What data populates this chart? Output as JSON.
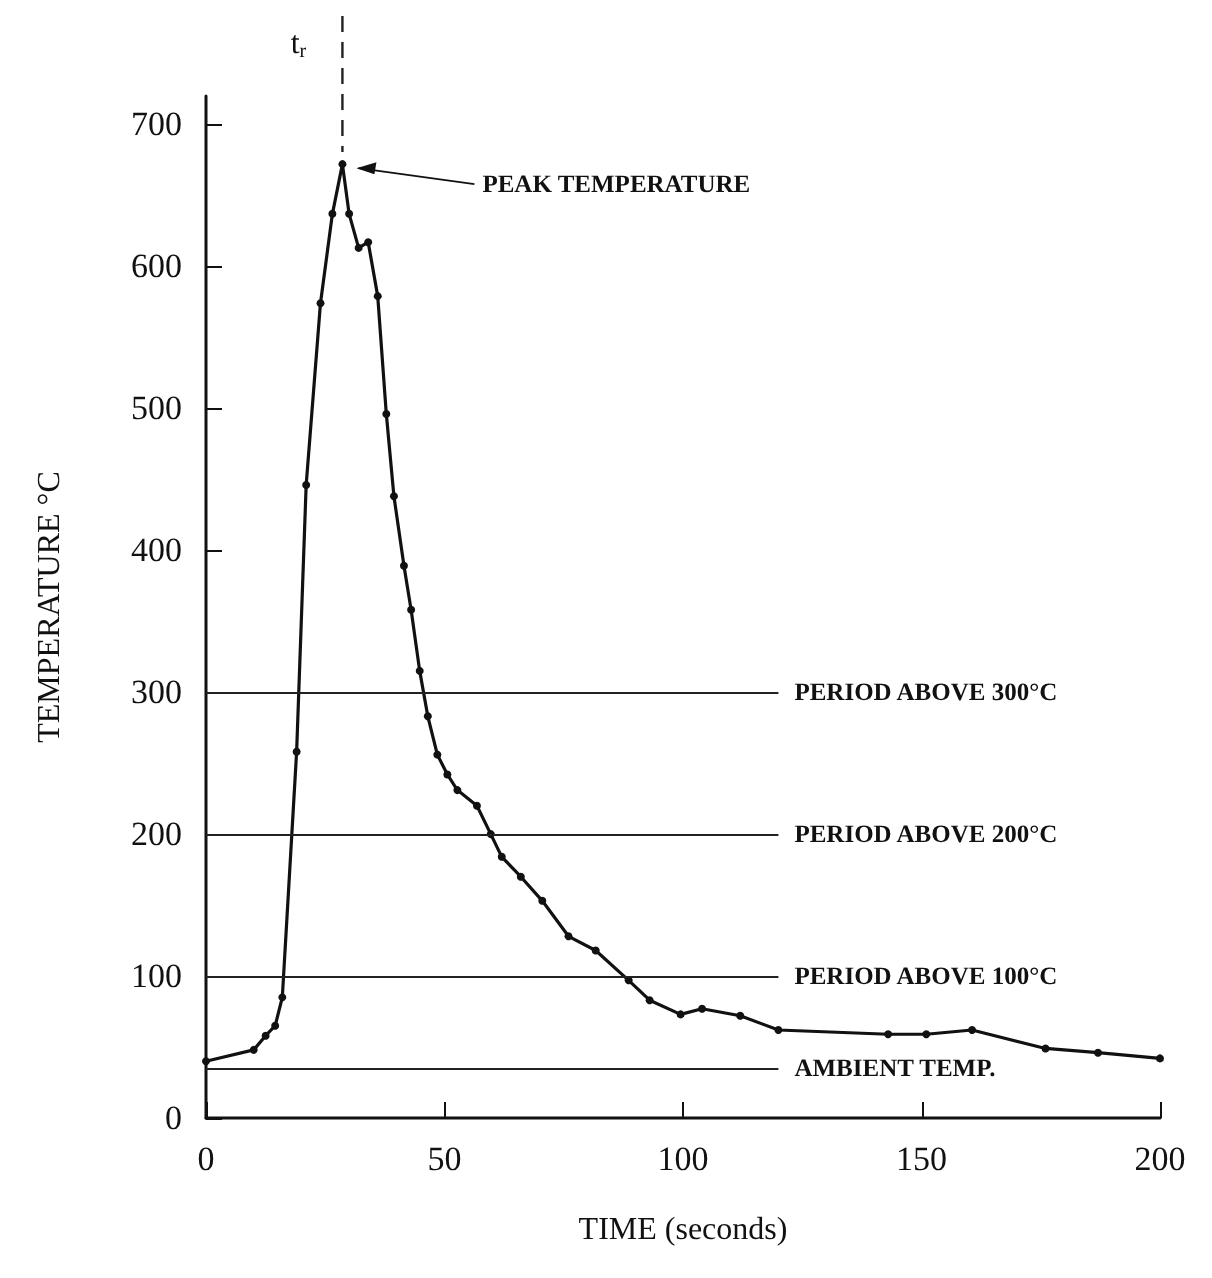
{
  "chart_data": {
    "type": "line",
    "xlabel": "TIME (seconds)",
    "ylabel": "TEMPERATURE °C",
    "x": [
      0,
      10,
      12.5,
      14.5,
      16,
      19,
      21,
      24,
      26.5,
      28.6,
      30,
      32,
      34,
      36,
      37.8,
      39.4,
      41.5,
      43,
      44.8,
      46.5,
      48.5,
      50.6,
      52.7,
      56.8,
      59.7,
      62,
      66,
      70.5,
      76,
      81.7,
      88.6,
      93,
      99.5,
      104,
      112,
      120,
      143,
      151,
      160.6,
      176,
      187,
      200
    ],
    "series": [
      {
        "color": "#111111",
        "values": [
          40,
          48,
          58,
          65,
          85,
          258,
          446,
          574,
          637,
          672,
          637,
          613,
          617,
          579,
          496,
          438,
          389,
          358,
          315,
          283,
          256,
          242,
          231,
          220,
          200,
          184,
          170,
          153,
          128,
          118,
          97,
          83,
          73,
          77,
          72,
          62,
          59,
          59,
          62,
          49,
          46,
          42
        ]
      }
    ],
    "xlim": [
      0,
      200
    ],
    "xticks": [
      0,
      50,
      100,
      150,
      200
    ],
    "ylim": [
      0,
      720
    ],
    "yticks": [
      0,
      100,
      200,
      300,
      400,
      500,
      600,
      700
    ],
    "grid": false,
    "marker": "circle",
    "line_style": "solid",
    "ref_lines": [
      {
        "axis": "y",
        "value": 300,
        "label": "PERIOD ABOVE 300°C"
      },
      {
        "axis": "y",
        "value": 200,
        "label": "PERIOD ABOVE 200°C"
      },
      {
        "axis": "y",
        "value": 100,
        "label": "PERIOD ABOVE 100°C"
      },
      {
        "axis": "y",
        "value": 35,
        "label": "AMBIENT TEMP."
      },
      {
        "axis": "x",
        "value": 28.6,
        "label": "t$_{r}$",
        "line_style": "dashed"
      }
    ],
    "annotations": [
      {
        "text": "PEAK TEMPERATURE",
        "x": 28.6,
        "y": 672
      }
    ]
  }
}
